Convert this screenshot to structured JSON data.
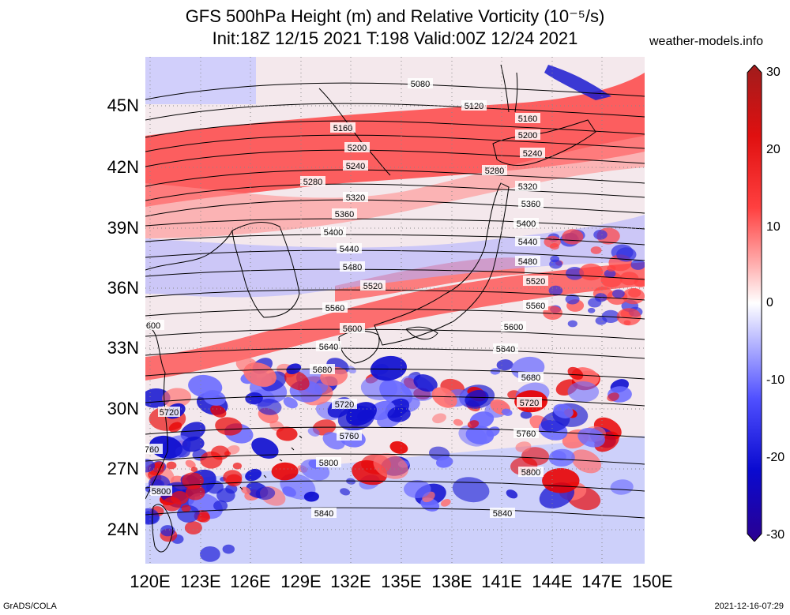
{
  "header": {
    "title_line1": "GFS 500hPa Height (m) and Relative Vorticity (10⁻⁵/s)",
    "title_line2": "Init:18Z 12/15 2021 T:198 Valid:00Z 12/24 2021",
    "site": "weather-models.info"
  },
  "footer": {
    "left": "GrADS/COLA",
    "right": "2021-12-16-07:29"
  },
  "axes": {
    "lat_labels": [
      "45N",
      "42N",
      "39N",
      "36N",
      "33N",
      "30N",
      "27N",
      "24N"
    ],
    "lon_labels": [
      "120E",
      "123E",
      "126E",
      "129E",
      "132E",
      "135E",
      "138E",
      "141E",
      "144E",
      "147E",
      "150E"
    ]
  },
  "colorbar": {
    "labels": [
      "30",
      "20",
      "10",
      "0",
      "-10",
      "-20",
      "-30"
    ],
    "colors_top_to_bottom": [
      "#b22222",
      "#ff0000",
      "#ff6060",
      "#ffb0b0",
      "#ffffff",
      "#b0b0ff",
      "#4040ff",
      "#0000cc",
      "#330099"
    ]
  },
  "contours": {
    "labels": [
      "5080",
      "5120",
      "5160",
      "5200",
      "5240",
      "5280",
      "5320",
      "5360",
      "5400",
      "5440",
      "5480",
      "5520",
      "5560",
      "5600",
      "5640",
      "5680",
      "5720",
      "5760",
      "5800",
      "5840"
    ],
    "edge_labels": [
      "600",
      "5720",
      "760",
      "5800"
    ]
  }
}
